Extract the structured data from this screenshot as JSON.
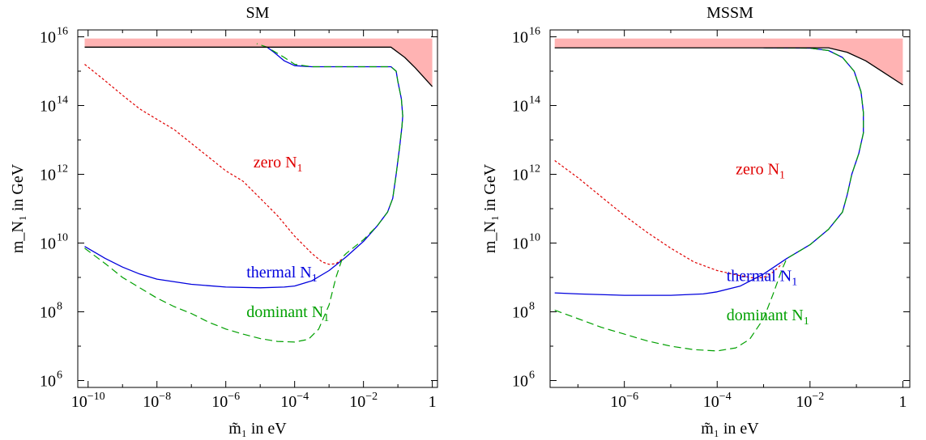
{
  "chart_data": [
    {
      "type": "line",
      "title": "SM",
      "xlabel": "m̃₁ in eV",
      "ylabel": "m_N₁ in GeV",
      "xscale": "log",
      "yscale": "log",
      "xlim_log10": [
        -10.3,
        0.15
      ],
      "ylim_log10": [
        5.8,
        16.2
      ],
      "xticks_log10": [
        -10,
        -8,
        -6,
        -4,
        -2,
        0
      ],
      "xtick_labels": [
        {
          "base": "10",
          "exp": "−10"
        },
        {
          "base": "10",
          "exp": "−8"
        },
        {
          "base": "10",
          "exp": "−6"
        },
        {
          "base": "10",
          "exp": "−4"
        },
        {
          "base": "10",
          "exp": "−2"
        },
        {
          "base": "1",
          "exp": ""
        }
      ],
      "yticks_log10": [
        6,
        8,
        10,
        12,
        14,
        16
      ],
      "ytick_labels": [
        {
          "base": "10",
          "exp": "6"
        },
        {
          "base": "10",
          "exp": "8"
        },
        {
          "base": "10",
          "exp": "10"
        },
        {
          "base": "10",
          "exp": "12"
        },
        {
          "base": "10",
          "exp": "14"
        },
        {
          "base": "10",
          "exp": "16"
        }
      ],
      "excluded_region": {
        "color": "#ffb3b3",
        "points_log10": [
          [
            -10.1,
            15.95
          ],
          [
            0,
            15.95
          ],
          [
            0,
            14.55
          ],
          [
            -0.5,
            15.1
          ],
          [
            -0.8,
            15.4
          ],
          [
            -1.2,
            15.7
          ],
          [
            -10.1,
            15.7
          ]
        ]
      },
      "series": [
        {
          "label": "zero N₁",
          "color": "#e00000",
          "dash": "dotted",
          "points_log10": [
            [
              -10.1,
              15.2
            ],
            [
              -9.6,
              14.8
            ],
            [
              -9.0,
              14.3
            ],
            [
              -8.5,
              13.9
            ],
            [
              -8.0,
              13.6
            ],
            [
              -7.5,
              13.3
            ],
            [
              -7.0,
              12.9
            ],
            [
              -6.5,
              12.5
            ],
            [
              -6.0,
              12.1
            ],
            [
              -5.5,
              11.8
            ],
            [
              -5.0,
              11.3
            ],
            [
              -4.5,
              10.8
            ],
            [
              -4.0,
              10.2
            ],
            [
              -3.5,
              9.7
            ],
            [
              -3.2,
              9.45
            ],
            [
              -3.0,
              9.38
            ],
            [
              -2.8,
              9.4
            ],
            [
              -2.6,
              9.55
            ]
          ]
        },
        {
          "label": "thermal N₁",
          "color": "#0000dd",
          "dash": "solid",
          "points_log10": [
            [
              -10.1,
              9.9
            ],
            [
              -9.5,
              9.55
            ],
            [
              -9.0,
              9.3
            ],
            [
              -8.5,
              9.1
            ],
            [
              -8.0,
              8.95
            ],
            [
              -7.0,
              8.8
            ],
            [
              -6.0,
              8.72
            ],
            [
              -5.0,
              8.7
            ],
            [
              -4.3,
              8.72
            ],
            [
              -4.0,
              8.75
            ],
            [
              -3.5,
              8.9
            ],
            [
              -3.0,
              9.2
            ],
            [
              -2.5,
              9.6
            ],
            [
              -2.0,
              10.05
            ],
            [
              -1.6,
              10.5
            ],
            [
              -1.3,
              10.9
            ],
            [
              -1.15,
              11.3
            ],
            [
              -1.05,
              12.0
            ],
            [
              -0.95,
              12.8
            ],
            [
              -0.88,
              13.4
            ],
            [
              -0.86,
              13.7
            ],
            [
              -0.9,
              14.2
            ],
            [
              -1.0,
              14.7
            ],
            [
              -1.05,
              15.0
            ],
            [
              -1.2,
              15.13
            ],
            [
              -2.5,
              15.13
            ],
            [
              -3.5,
              15.13
            ],
            [
              -4.0,
              15.16
            ],
            [
              -4.3,
              15.3
            ],
            [
              -4.6,
              15.55
            ],
            [
              -4.8,
              15.7
            ]
          ]
        },
        {
          "label": "dominant N₁",
          "color": "#00a000",
          "dash": "dashed",
          "points_log10": [
            [
              -10.1,
              9.85
            ],
            [
              -9.5,
              9.4
            ],
            [
              -9.0,
              9.0
            ],
            [
              -8.5,
              8.7
            ],
            [
              -8.0,
              8.4
            ],
            [
              -7.5,
              8.15
            ],
            [
              -7.0,
              7.95
            ],
            [
              -6.5,
              7.7
            ],
            [
              -6.0,
              7.5
            ],
            [
              -5.5,
              7.35
            ],
            [
              -5.0,
              7.22
            ],
            [
              -4.5,
              7.14
            ],
            [
              -4.0,
              7.12
            ],
            [
              -3.6,
              7.2
            ],
            [
              -3.3,
              7.5
            ],
            [
              -3.0,
              8.2
            ],
            [
              -2.8,
              9.0
            ],
            [
              -2.6,
              9.6
            ],
            [
              -2.5,
              9.7
            ],
            [
              -2.0,
              10.1
            ],
            [
              -1.6,
              10.5
            ],
            [
              -1.3,
              10.9
            ],
            [
              -1.15,
              11.3
            ],
            [
              -1.05,
              12.0
            ],
            [
              -0.95,
              12.8
            ],
            [
              -0.88,
              13.4
            ],
            [
              -0.86,
              13.7
            ],
            [
              -0.9,
              14.2
            ],
            [
              -1.0,
              14.7
            ],
            [
              -1.05,
              15.0
            ],
            [
              -1.2,
              15.13
            ],
            [
              -2.5,
              15.13
            ],
            [
              -3.5,
              15.13
            ],
            [
              -4.0,
              15.2
            ],
            [
              -4.3,
              15.4
            ],
            [
              -4.8,
              15.7
            ],
            [
              -5.1,
              15.8
            ]
          ]
        },
        {
          "label": "",
          "color": "#000000",
          "dash": "solid",
          "points_log10": [
            [
              -10.1,
              15.7
            ],
            [
              -1.2,
              15.7
            ],
            [
              -0.8,
              15.4
            ],
            [
              -0.5,
              15.1
            ],
            [
              0,
              14.55
            ]
          ]
        }
      ],
      "annotations": [
        {
          "text": "zero N",
          "sub": "1",
          "color": "#e00000",
          "x_log10": -5.2,
          "y_log10": 12.2
        },
        {
          "text": "thermal N",
          "sub": "1",
          "color": "#0000dd",
          "x_log10": -5.4,
          "y_log10": 9.0
        },
        {
          "text": "dominant N",
          "sub": "1",
          "color": "#00a000",
          "x_log10": -5.4,
          "y_log10": 7.85
        }
      ]
    },
    {
      "type": "line",
      "title": "MSSM",
      "xlabel": "m̃₁ in eV",
      "ylabel": "m_N₁ in GeV",
      "xscale": "log",
      "yscale": "log",
      "xlim_log10": [
        -7.6,
        0.15
      ],
      "ylim_log10": [
        5.8,
        16.2
      ],
      "xticks_log10": [
        -6,
        -4,
        -2,
        0
      ],
      "xtick_labels": [
        {
          "base": "10",
          "exp": "−6"
        },
        {
          "base": "10",
          "exp": "−4"
        },
        {
          "base": "10",
          "exp": "−2"
        },
        {
          "base": "1",
          "exp": ""
        }
      ],
      "yticks_log10": [
        6,
        8,
        10,
        12,
        14,
        16
      ],
      "ytick_labels": [
        {
          "base": "10",
          "exp": "6"
        },
        {
          "base": "10",
          "exp": "8"
        },
        {
          "base": "10",
          "exp": "10"
        },
        {
          "base": "10",
          "exp": "12"
        },
        {
          "base": "10",
          "exp": "14"
        },
        {
          "base": "10",
          "exp": "16"
        }
      ],
      "excluded_region": {
        "color": "#ffb3b3",
        "points_log10": [
          [
            -7.5,
            15.95
          ],
          [
            0,
            15.95
          ],
          [
            0,
            14.6
          ],
          [
            -0.4,
            14.95
          ],
          [
            -0.8,
            15.3
          ],
          [
            -1.2,
            15.55
          ],
          [
            -1.6,
            15.68
          ],
          [
            -7.5,
            15.68
          ]
        ]
      },
      "series": [
        {
          "label": "zero N₁",
          "color": "#e00000",
          "dash": "dotted",
          "points_log10": [
            [
              -7.5,
              12.4
            ],
            [
              -7.0,
              11.9
            ],
            [
              -6.5,
              11.35
            ],
            [
              -6.0,
              10.8
            ],
            [
              -5.5,
              10.3
            ],
            [
              -5.0,
              9.85
            ],
            [
              -4.5,
              9.45
            ],
            [
              -4.0,
              9.2
            ],
            [
              -3.5,
              9.05
            ],
            [
              -3.2,
              8.98
            ],
            [
              -3.0,
              9.0
            ],
            [
              -2.8,
              9.15
            ],
            [
              -2.6,
              9.4
            ]
          ]
        },
        {
          "label": "thermal N₁",
          "color": "#0000dd",
          "dash": "solid",
          "points_log10": [
            [
              -7.5,
              8.55
            ],
            [
              -7.0,
              8.52
            ],
            [
              -6.0,
              8.48
            ],
            [
              -5.0,
              8.48
            ],
            [
              -4.3,
              8.52
            ],
            [
              -4.0,
              8.58
            ],
            [
              -3.5,
              8.75
            ],
            [
              -3.0,
              9.1
            ],
            [
              -2.5,
              9.55
            ],
            [
              -2.0,
              9.95
            ],
            [
              -1.6,
              10.4
            ],
            [
              -1.3,
              10.9
            ],
            [
              -1.2,
              11.4
            ],
            [
              -1.1,
              12.0
            ],
            [
              -0.95,
              12.6
            ],
            [
              -0.85,
              13.2
            ],
            [
              -0.85,
              13.8
            ],
            [
              -0.9,
              14.4
            ],
            [
              -1.05,
              15.0
            ],
            [
              -1.3,
              15.4
            ],
            [
              -1.6,
              15.6
            ],
            [
              -2.0,
              15.67
            ],
            [
              -3.0,
              15.68
            ]
          ]
        },
        {
          "label": "dominant N₁",
          "color": "#00a000",
          "dash": "dashed",
          "points_log10": [
            [
              -7.5,
              8.05
            ],
            [
              -7.0,
              7.8
            ],
            [
              -6.5,
              7.55
            ],
            [
              -6.0,
              7.35
            ],
            [
              -5.5,
              7.15
            ],
            [
              -5.0,
              7.0
            ],
            [
              -4.5,
              6.9
            ],
            [
              -4.0,
              6.86
            ],
            [
              -3.6,
              6.95
            ],
            [
              -3.3,
              7.2
            ],
            [
              -3.0,
              7.8
            ],
            [
              -2.8,
              8.5
            ],
            [
              -2.6,
              9.25
            ],
            [
              -2.5,
              9.55
            ],
            [
              -2.0,
              9.95
            ],
            [
              -1.6,
              10.4
            ],
            [
              -1.3,
              10.9
            ],
            [
              -1.2,
              11.4
            ],
            [
              -1.1,
              12.0
            ],
            [
              -0.95,
              12.6
            ],
            [
              -0.85,
              13.2
            ],
            [
              -0.85,
              13.8
            ],
            [
              -0.9,
              14.4
            ],
            [
              -1.05,
              15.0
            ],
            [
              -1.3,
              15.4
            ],
            [
              -1.6,
              15.6
            ],
            [
              -2.0,
              15.67
            ],
            [
              -3.0,
              15.68
            ]
          ]
        },
        {
          "label": "",
          "color": "#000000",
          "dash": "solid",
          "points_log10": [
            [
              -7.5,
              15.68
            ],
            [
              -1.6,
              15.68
            ],
            [
              -1.2,
              15.55
            ],
            [
              -0.8,
              15.3
            ],
            [
              -0.4,
              14.95
            ],
            [
              0,
              14.6
            ]
          ]
        }
      ],
      "annotations": [
        {
          "text": "zero N",
          "sub": "1",
          "color": "#e00000",
          "x_log10": -3.6,
          "y_log10": 12.0
        },
        {
          "text": "thermal N",
          "sub": "1",
          "color": "#0000dd",
          "x_log10": -3.8,
          "y_log10": 8.9
        },
        {
          "text": "dominant N",
          "sub": "1",
          "color": "#00a000",
          "x_log10": -3.8,
          "y_log10": 7.75
        }
      ]
    }
  ]
}
